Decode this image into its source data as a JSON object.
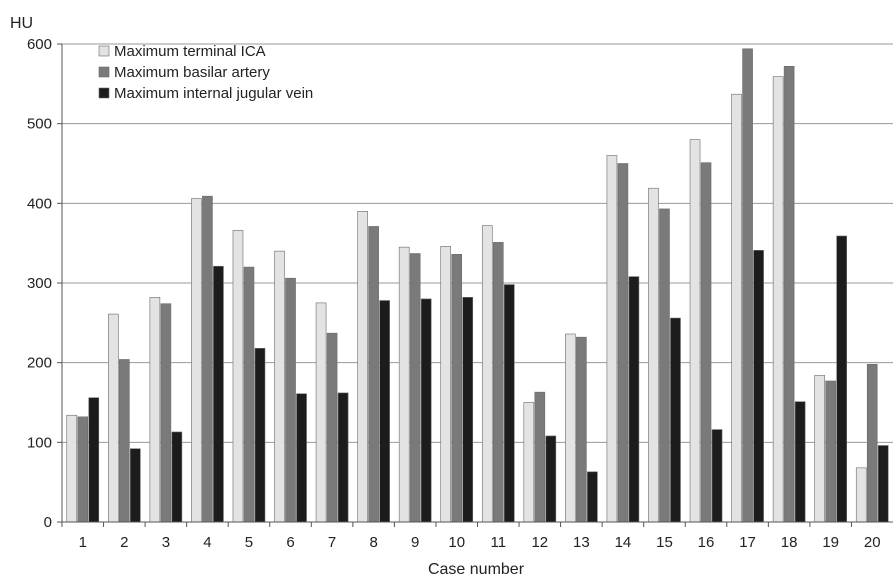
{
  "chart_data": {
    "type": "bar",
    "title": "",
    "ylabel": "HU",
    "xlabel": "Case number",
    "ylim": [
      0,
      600
    ],
    "yticks": [
      0,
      100,
      200,
      300,
      400,
      500,
      600
    ],
    "grid": true,
    "legend_position": "top-left",
    "categories": [
      "1",
      "2",
      "3",
      "4",
      "5",
      "6",
      "7",
      "8",
      "9",
      "10",
      "11",
      "12",
      "13",
      "14",
      "15",
      "16",
      "17",
      "18",
      "19",
      "20"
    ],
    "series": [
      {
        "name": "Maximum terminal ICA",
        "color": "#e3e3e3",
        "values": [
          134,
          261,
          282,
          406,
          366,
          340,
          275,
          390,
          345,
          346,
          372,
          150,
          236,
          460,
          419,
          480,
          537,
          559,
          184,
          68
        ]
      },
      {
        "name": "Maximum basilar artery",
        "color": "#7a7a7a",
        "values": [
          132,
          204,
          274,
          409,
          320,
          306,
          237,
          371,
          337,
          336,
          351,
          163,
          232,
          450,
          393,
          451,
          594,
          572,
          177,
          198
        ]
      },
      {
        "name": "Maximum internal jugular vein",
        "color": "#1c1c1c",
        "values": [
          156,
          92,
          113,
          321,
          218,
          161,
          162,
          278,
          280,
          282,
          298,
          108,
          63,
          308,
          256,
          116,
          341,
          151,
          359,
          96
        ]
      }
    ]
  }
}
